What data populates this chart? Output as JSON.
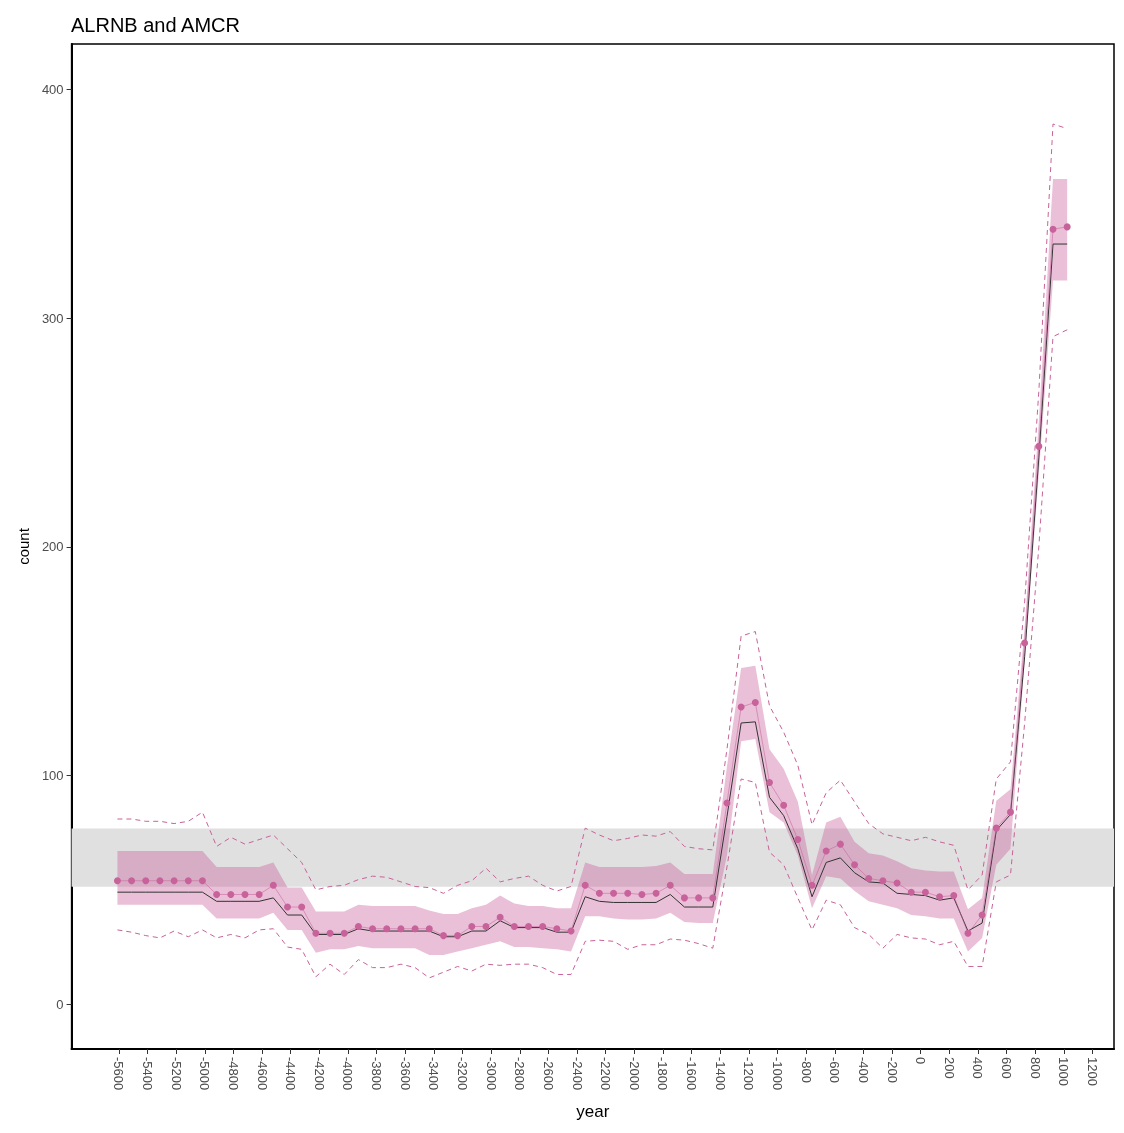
{
  "chart_data": {
    "type": "line",
    "title": "ALRNB and AMCR",
    "xlabel": "year",
    "ylabel": "count",
    "x": [
      -5610,
      -5511,
      -5412,
      -5313,
      -5214,
      -5115,
      -5016,
      -4917,
      -4818,
      -4719,
      -4620,
      -4521,
      -4422,
      -4323,
      -4224,
      -4125,
      -4026,
      -3927,
      -3828,
      -3729,
      -3630,
      -3531,
      -3432,
      -3333,
      -3234,
      -3135,
      -3036,
      -2937,
      -2838,
      -2739,
      -2640,
      -2541,
      -2442,
      -2343,
      -2244,
      -2145,
      -2046,
      -1947,
      -1848,
      -1749,
      -1650,
      -1551,
      -1452,
      -1353,
      -1254,
      -1155,
      -1056,
      -957,
      -858,
      -759,
      -660,
      -561,
      -462,
      -363,
      -264,
      -165,
      -66,
      33,
      132,
      231,
      330,
      429,
      528,
      627,
      726,
      825,
      924,
      1023
    ],
    "xlim": [
      -5930,
      1350
    ],
    "xticks": [
      -5600,
      -5400,
      -5200,
      -5000,
      -4800,
      -4600,
      -4400,
      -4200,
      -4000,
      -3800,
      -3600,
      -3400,
      -3200,
      -3000,
      -2800,
      -2600,
      -2400,
      -2200,
      -2000,
      -1800,
      -1600,
      -1400,
      -1200,
      -1000,
      -800,
      -600,
      -400,
      -200,
      0,
      200,
      400,
      600,
      800,
      1000,
      1200
    ],
    "ylim": [
      -19.6,
      420
    ],
    "yticks": [
      0,
      100,
      200,
      300,
      400
    ],
    "grid": false,
    "bands": [
      {
        "axis": "y",
        "from": 51.4,
        "to": 76.8,
        "color": "#e0e0e0"
      }
    ],
    "series": [
      {
        "color": "#c8629a",
        "marker": "circle",
        "values": [
          54,
          54,
          54,
          54,
          54,
          54,
          54,
          48,
          48,
          48,
          48,
          52,
          42.5,
          42.5,
          31,
          31,
          31,
          34,
          33,
          33,
          33,
          33,
          33,
          30,
          30,
          34,
          34,
          38,
          34,
          34,
          34,
          33,
          32,
          52,
          48.5,
          48.5,
          48.5,
          48,
          48.5,
          52,
          46.5,
          46.5,
          46.5,
          88,
          130,
          132,
          97,
          87,
          72,
          52,
          67,
          70,
          61,
          55,
          54,
          53,
          49,
          49,
          47,
          47.5,
          31,
          39,
          77,
          84,
          158,
          244,
          339,
          340
        ],
        "lower": [
          43.5,
          43.5,
          43.5,
          43.5,
          43.5,
          43.5,
          43.5,
          37.5,
          37.5,
          37.5,
          37.5,
          40,
          32.5,
          32.5,
          22.5,
          24,
          24,
          25.5,
          24.5,
          24.5,
          24.5,
          24.5,
          21.5,
          21.5,
          23,
          24.5,
          26,
          27.5,
          25,
          25,
          24.5,
          24,
          23,
          38.5,
          38.5,
          37.5,
          37,
          37,
          37.5,
          40,
          36,
          35.5,
          35.5,
          65,
          115,
          116,
          84,
          79.5,
          65,
          42,
          56,
          55,
          49.5,
          45,
          43.5,
          42,
          39,
          38.5,
          37.5,
          37.5,
          23,
          29,
          61,
          68,
          150,
          232,
          316.5,
          316.5
        ],
        "upper": [
          67,
          67,
          67,
          67,
          67,
          67,
          67,
          60,
          60,
          60,
          60,
          62,
          51,
          51,
          40.5,
          40.5,
          40.5,
          43.5,
          43,
          43,
          43,
          43,
          41,
          39.5,
          39.5,
          42,
          43.5,
          47.5,
          44,
          43,
          43,
          42,
          42,
          62,
          60,
          60,
          60,
          60,
          60.5,
          62,
          57,
          57,
          57,
          104,
          147,
          148,
          111.5,
          103,
          88.5,
          56.5,
          79.5,
          82,
          71,
          66,
          65,
          62.5,
          59.5,
          58.5,
          58,
          58,
          41.5,
          46.5,
          89,
          94,
          165,
          255,
          361,
          361
        ]
      },
      {
        "color": "#333333",
        "marker": "none",
        "values": [
          49,
          49,
          49,
          49,
          49,
          49,
          49,
          45,
          45,
          45,
          45,
          46.5,
          39,
          39,
          30.5,
          30.5,
          30.5,
          33,
          32,
          32,
          32,
          32,
          32,
          29.5,
          29.5,
          32,
          32,
          36.5,
          33.5,
          33.5,
          33.5,
          31.5,
          31.5,
          47,
          45,
          44.5,
          44.5,
          44.5,
          44.5,
          48,
          42.5,
          42.5,
          42.5,
          82,
          123,
          123.5,
          90.5,
          82.5,
          68,
          47,
          62,
          64,
          57.5,
          53.5,
          53,
          48.5,
          48,
          47.5,
          45.5,
          46.5,
          32,
          35.5,
          76,
          83,
          152,
          239,
          332.5,
          332.5
        ]
      },
      {
        "color": "#c8629a",
        "marker": "none",
        "line_style": "dashed",
        "values": [
          81,
          81,
          80,
          80,
          79,
          80,
          84,
          69,
          73,
          70,
          72,
          74,
          68,
          62,
          50,
          51.5,
          52,
          54.5,
          56,
          55.5,
          53.5,
          51.5,
          51,
          48.5,
          52,
          54,
          59.5,
          53.5,
          55,
          56,
          52,
          49.5,
          51.5,
          77,
          74,
          71.5,
          72.5,
          74,
          73.5,
          75.5,
          69,
          68,
          67.5,
          111.5,
          161,
          163,
          130.5,
          119,
          104.5,
          78.5,
          92.5,
          98,
          88.5,
          79,
          74.5,
          73,
          71.5,
          73,
          71,
          69.5,
          50,
          56.5,
          98.5,
          106,
          176,
          268,
          385,
          383
        ]
      },
      {
        "color": "#c8629a",
        "marker": "none",
        "line_style": "dashed",
        "values": [
          32.5,
          31.5,
          30,
          29,
          32,
          29.5,
          32.5,
          29,
          30.5,
          29,
          32.5,
          33,
          25,
          24,
          12,
          17.5,
          13,
          19.5,
          16,
          16,
          17.5,
          16,
          11.5,
          14,
          16.5,
          14.5,
          17.5,
          17,
          17.5,
          17.5,
          16,
          13,
          13,
          27.5,
          28,
          27.5,
          24,
          26,
          26,
          28.5,
          28,
          26.5,
          24.5,
          60,
          98.5,
          97,
          66.5,
          61,
          46.5,
          32.5,
          45.5,
          43.5,
          33.5,
          30.5,
          24.5,
          30.5,
          29,
          28.5,
          26,
          27.5,
          16.5,
          16.5,
          53.5,
          56.5,
          123,
          200,
          292,
          295
        ]
      }
    ]
  }
}
